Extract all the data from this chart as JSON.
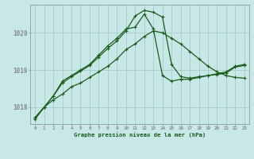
{
  "title": "Graphe pression niveau de la mer (hPa)",
  "background_color": "#c8e8e8",
  "line_color": "#1a5c1a",
  "ylim": [
    1017.55,
    1020.75
  ],
  "yticks": [
    1018,
    1019,
    1020
  ],
  "xlim": [
    -0.5,
    23.5
  ],
  "xticks": [
    0,
    1,
    2,
    3,
    4,
    5,
    6,
    7,
    8,
    9,
    10,
    11,
    12,
    13,
    14,
    15,
    16,
    17,
    18,
    19,
    20,
    21,
    22,
    23
  ],
  "series1_y": [
    1017.68,
    1018.0,
    1018.2,
    1018.35,
    1018.55,
    1018.65,
    1018.8,
    1018.95,
    1019.1,
    1019.3,
    1019.55,
    1019.7,
    1019.9,
    1020.05,
    1020.0,
    1019.85,
    1019.7,
    1019.5,
    1019.3,
    1019.1,
    1018.95,
    1018.85,
    1018.8,
    1018.78
  ],
  "series2_y": [
    1017.72,
    1018.0,
    1018.3,
    1018.7,
    1018.85,
    1019.0,
    1019.15,
    1019.4,
    1019.65,
    1019.85,
    1020.1,
    1020.15,
    1020.5,
    1020.1,
    1018.85,
    1018.7,
    1018.75,
    1018.75,
    1018.8,
    1018.85,
    1018.9,
    1018.95,
    1019.1,
    1019.15
  ],
  "series3_y": [
    1017.72,
    1018.0,
    1018.3,
    1018.65,
    1018.82,
    1018.97,
    1019.12,
    1019.35,
    1019.58,
    1019.78,
    1020.05,
    1020.45,
    1020.6,
    1020.55,
    1020.42,
    1019.15,
    1018.82,
    1018.78,
    1018.82,
    1018.85,
    1018.88,
    1018.92,
    1019.08,
    1019.12
  ]
}
